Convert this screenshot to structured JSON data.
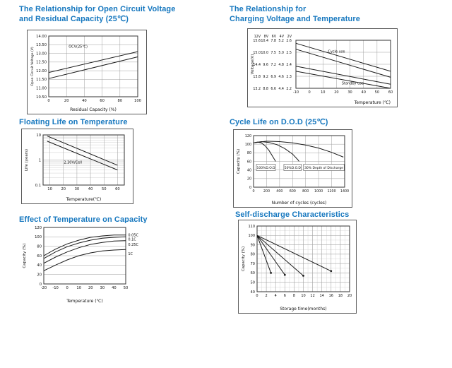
{
  "page": {
    "background": "#ffffff"
  },
  "title_color": "#1778bf",
  "titles": [
    {
      "line1": "The Relationship for Open Circuit Voltage",
      "line2": "and Residual Capacity (25℃)"
    },
    {
      "line1": "The Relationship for",
      "line2": "Charging Voltage and Temperature"
    },
    {
      "line1": "Floating Life on Temperature",
      "line2": ""
    },
    {
      "line1": "Cycle Life on D.O.D (25℃)",
      "line2": ""
    },
    {
      "line1": "Effect of Temperature on Capacity",
      "line2": ""
    },
    {
      "line1": "Self-discharge Characteristics",
      "line2": ""
    }
  ],
  "chart_data": [
    {
      "type": "line",
      "title": "The Relationship for Open Circuit Voltage and Residual Capacity (25℃)",
      "xlabel": "Residual Capacity (%)",
      "ylabel": "Open Circuit Voltage (V)",
      "xlim": [
        0,
        100
      ],
      "ylim": [
        10.5,
        14.0
      ],
      "xticks": [
        0,
        20,
        40,
        60,
        80,
        100
      ],
      "yticks": [
        10.5,
        11.0,
        11.5,
        12.0,
        12.5,
        13.0,
        13.5,
        14.0
      ],
      "ytick_labels": [
        "10.50",
        "11.00",
        "11.50",
        "12.00",
        "12.50",
        "13.00",
        "13.50",
        "14.00"
      ],
      "grid": "xy",
      "series": [
        {
          "name": "ocv-upper",
          "points": [
            [
              0,
              11.9
            ],
            [
              100,
              13.1
            ]
          ]
        },
        {
          "name": "ocv-lower",
          "points": [
            [
              0,
              11.55
            ],
            [
              100,
              12.8
            ]
          ]
        }
      ],
      "annotations": [
        {
          "text": "OCV(25℃)",
          "x": 33,
          "y": 13.4
        }
      ]
    },
    {
      "type": "line",
      "title": "The Relationship for Charging Voltage and Temperature",
      "xlabel": "Temperature (℃)",
      "ylabel": "Voltage(V)",
      "xlim": [
        -10,
        60
      ],
      "ylim": [
        13.2,
        15.6
      ],
      "xticks": [
        -10,
        0,
        10,
        20,
        30,
        40,
        50,
        60
      ],
      "yticks": [
        13.2,
        13.8,
        14.4,
        15.0,
        15.6
      ],
      "ytick_table": {
        "headers": [
          "12V",
          "8V",
          "6V",
          "4V",
          "2V"
        ],
        "rows": [
          [
            "15.6",
            "10.4",
            "7.8",
            "5.2",
            "2.6"
          ],
          [
            "15.0",
            "10.0",
            "7.5",
            "5.0",
            "2.5"
          ],
          [
            "14.4",
            "9.6",
            "7.2",
            "4.8",
            "2.4"
          ],
          [
            "13.8",
            "9.2",
            "6.9",
            "4.6",
            "2.3"
          ],
          [
            "13.2",
            "8.8",
            "6.6",
            "4.4",
            "2.2"
          ]
        ]
      },
      "grid": "xy",
      "series": [
        {
          "name": "cycle-use-upper",
          "points": [
            [
              -10,
              15.45
            ],
            [
              60,
              14.05
            ]
          ]
        },
        {
          "name": "cycle-use-lower",
          "points": [
            [
              -10,
              15.15
            ],
            [
              60,
              13.75
            ]
          ]
        },
        {
          "name": "standby-use-upper",
          "points": [
            [
              -10,
              14.3
            ],
            [
              60,
              13.4
            ]
          ]
        },
        {
          "name": "standby-use-lower",
          "points": [
            [
              -10,
              14.05
            ],
            [
              60,
              13.2
            ]
          ]
        }
      ],
      "annotations": [
        {
          "text": "Cycle use",
          "x": 20,
          "y": 15.05
        },
        {
          "text": "Standby use",
          "x": 32,
          "y": 13.45
        }
      ]
    },
    {
      "type": "line",
      "title": "Floating Life on Temperature",
      "xlabel": "Temperature(℃)",
      "ylabel": "Life (years)",
      "xlim": [
        5,
        65
      ],
      "ylim": [
        0.1,
        10
      ],
      "ylog": true,
      "minor_y_log": true,
      "xticks": [
        10,
        20,
        30,
        40,
        50,
        60
      ],
      "yticks": [
        0.1,
        1,
        10
      ],
      "ytick_labels": [
        "0.1",
        "1",
        "10"
      ],
      "grid": "xy",
      "series": [
        {
          "name": "float-life-upper",
          "points": [
            [
              8,
              9
            ],
            [
              60,
              0.62
            ]
          ]
        },
        {
          "name": "float-life-lower",
          "points": [
            [
              8,
              5.6
            ],
            [
              60,
              0.4
            ]
          ]
        }
      ],
      "annotations": [
        {
          "text": "2.30V/Cell",
          "x": 27,
          "y": 0.8
        }
      ]
    },
    {
      "type": "line",
      "title": "Cycle Life on D.O.D (25℃)",
      "xlabel": "Number of cycles (cycles)",
      "ylabel": "Capacity (%)",
      "xlim": [
        0,
        1400
      ],
      "ylim": [
        0,
        120
      ],
      "xticks": [
        0,
        200,
        400,
        600,
        800,
        1000,
        1200,
        1400
      ],
      "yticks": [
        0,
        20,
        40,
        60,
        80,
        100,
        120
      ],
      "grid": "xy",
      "series": [
        {
          "name": "dod-100-percent",
          "points": [
            [
              0,
              103
            ],
            [
              60,
              105
            ],
            [
              120,
              103
            ],
            [
              180,
              96
            ],
            [
              240,
              85
            ],
            [
              300,
              70
            ],
            [
              340,
              60
            ]
          ]
        },
        {
          "name": "dod-50-percent",
          "points": [
            [
              0,
              103
            ],
            [
              120,
              106
            ],
            [
              240,
              104
            ],
            [
              360,
              99
            ],
            [
              480,
              90
            ],
            [
              600,
              77
            ],
            [
              680,
              64
            ],
            [
              700,
              60
            ]
          ]
        },
        {
          "name": "dod-30-percent",
          "points": [
            [
              0,
              103
            ],
            [
              200,
              107
            ],
            [
              400,
              106
            ],
            [
              600,
              103
            ],
            [
              800,
              98
            ],
            [
              1000,
              91
            ],
            [
              1200,
              81
            ],
            [
              1380,
              70
            ]
          ]
        }
      ],
      "annotations": [
        {
          "text": "100%D.O.D",
          "x": 190,
          "y": 46,
          "boxed": true,
          "size": 4.5
        },
        {
          "text": "50%D.O.D",
          "x": 600,
          "y": 46,
          "boxed": true,
          "size": 4.5
        },
        {
          "text": "30% Depth of Discharge",
          "x": 1080,
          "y": 46,
          "boxed": true,
          "size": 4.5
        }
      ]
    },
    {
      "type": "line",
      "title": "Effect of Temperature on Capacity",
      "xlabel": "Temperature (℃)",
      "ylabel": "Capacity (%)",
      "xlim": [
        -20,
        50
      ],
      "ylim": [
        0,
        120
      ],
      "xticks": [
        -20,
        -10,
        0,
        10,
        20,
        30,
        40,
        50
      ],
      "yticks": [
        0,
        20,
        40,
        60,
        80,
        100,
        120
      ],
      "grid": "y",
      "series": [
        {
          "name": "rate-0.05C",
          "points": [
            [
              -20,
              60
            ],
            [
              -10,
              74
            ],
            [
              0,
              85
            ],
            [
              10,
              93
            ],
            [
              20,
              99
            ],
            [
              30,
              102
            ],
            [
              40,
              104
            ],
            [
              50,
              104
            ]
          ]
        },
        {
          "name": "rate-0.1C",
          "points": [
            [
              -20,
              54
            ],
            [
              -10,
              68
            ],
            [
              0,
              79
            ],
            [
              10,
              87
            ],
            [
              20,
              93
            ],
            [
              30,
              97
            ],
            [
              40,
              99
            ],
            [
              50,
              100
            ]
          ]
        },
        {
          "name": "rate-0.25C",
          "points": [
            [
              -20,
              44
            ],
            [
              -10,
              57
            ],
            [
              0,
              68
            ],
            [
              10,
              77
            ],
            [
              20,
              84
            ],
            [
              30,
              88
            ],
            [
              40,
              91
            ],
            [
              50,
              92
            ]
          ]
        },
        {
          "name": "rate-1C",
          "points": [
            [
              -20,
              28
            ],
            [
              -10,
              40
            ],
            [
              0,
              51
            ],
            [
              10,
              60
            ],
            [
              20,
              66
            ],
            [
              30,
              70
            ],
            [
              40,
              72
            ],
            [
              50,
              73
            ]
          ]
        }
      ],
      "annotations": [
        {
          "text": "0.05C",
          "x": 52,
          "y": 104,
          "anchor": "start"
        },
        {
          "text": "0.1C",
          "x": 52,
          "y": 95,
          "anchor": "start"
        },
        {
          "text": "0.25C",
          "x": 52,
          "y": 84,
          "anchor": "start"
        },
        {
          "text": "1C",
          "x": 52,
          "y": 64,
          "anchor": "start"
        }
      ]
    },
    {
      "type": "line",
      "title": "Self-discharge Characteristics",
      "xlabel": "Storage time(months)",
      "ylabel": "Capacity (%)",
      "xlim": [
        0,
        20
      ],
      "ylim": [
        40,
        110
      ],
      "xticks": [
        0,
        2,
        4,
        6,
        8,
        10,
        12,
        14,
        16,
        18,
        20
      ],
      "yticks": [
        40,
        50,
        60,
        70,
        80,
        90,
        100,
        110
      ],
      "grid": "xy",
      "minor_x_step": 1,
      "minor_y_step": 5,
      "series": [
        {
          "name": "self-discharge-fast",
          "points": [
            [
              0,
              100
            ],
            [
              3,
              60
            ]
          ],
          "end_marker": true
        },
        {
          "name": "self-discharge-mid-fast",
          "points": [
            [
              0,
              100
            ],
            [
              6,
              58
            ]
          ],
          "end_marker": true
        },
        {
          "name": "self-discharge-mid-slow",
          "points": [
            [
              0,
              100
            ],
            [
              10,
              57
            ]
          ],
          "end_marker": true
        },
        {
          "name": "self-discharge-slow",
          "points": [
            [
              0,
              100
            ],
            [
              16,
              62
            ]
          ],
          "end_marker": true
        }
      ],
      "annotations": []
    }
  ]
}
